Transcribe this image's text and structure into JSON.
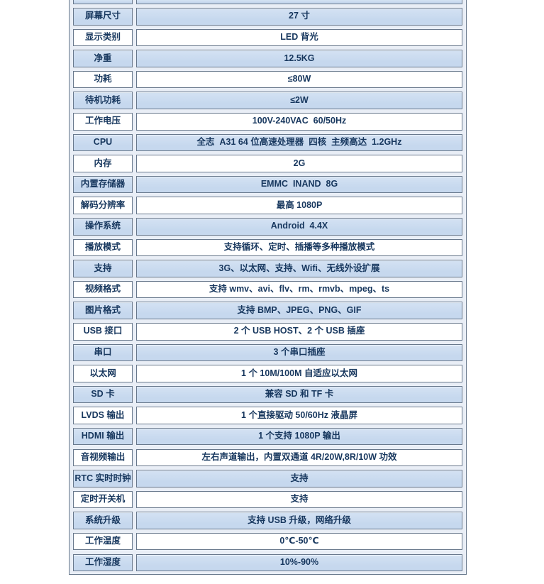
{
  "page": {
    "background": "#ffffff"
  },
  "table": {
    "colors": {
      "row_blue": "#c6d8ee",
      "row_blue_top": "#d4e2f3",
      "row_white": "#ffffff",
      "border": "#68788c",
      "spacing_bg": "#e9eef6",
      "text": "#17375e"
    },
    "rows": [
      {
        "label": "屏幕尺寸",
        "value": "27 寸"
      },
      {
        "label": "显示类别",
        "value": "LED 背光"
      },
      {
        "label": "净重",
        "value": "12.5KG"
      },
      {
        "label": "功耗",
        "value": "≤80W"
      },
      {
        "label": "待机功耗",
        "value": "≤2W"
      },
      {
        "label": "工作电压",
        "value": "100V-240VAC  60/50Hz"
      },
      {
        "label": "CPU",
        "value": "全志  A31 64 位高速处理器  四核  主频高达  1.2GHz"
      },
      {
        "label": "内存",
        "value": "2G"
      },
      {
        "label": "内置存储器",
        "value": "EMMC  INAND  8G"
      },
      {
        "label": "解码分辨率",
        "value": "最高 1080P"
      },
      {
        "label": "操作系统",
        "value": "Android  4.4X"
      },
      {
        "label": "播放模式",
        "value": "支持循环、定时、插播等多种播放模式"
      },
      {
        "label": "支持",
        "value": "3G、以太网、支持、Wifi、无线外设扩展"
      },
      {
        "label": "视频格式",
        "value": "支持 wmv、avi、flv、rm、rmvb、mpeg、ts"
      },
      {
        "label": "图片格式",
        "value": "支持 BMP、JPEG、PNG、GIF"
      },
      {
        "label": "USB 接口",
        "value": "2 个 USB HOST、2 个 USB 插座"
      },
      {
        "label": "串口",
        "value": "3 个串口插座"
      },
      {
        "label": "以太网",
        "value": "1 个 10M/100M 自适应以太网"
      },
      {
        "label": "SD 卡",
        "value": "兼容 SD 和 TF 卡"
      },
      {
        "label": "LVDS 输出",
        "value": "1 个直接驱动 50/60Hz 液晶屏"
      },
      {
        "label": "HDMI 输出",
        "value": "1 个支持 1080P 输出"
      },
      {
        "label": "音视频输出",
        "value": "左右声道输出，内置双通道 4R/20W,8R/10W 功效"
      },
      {
        "label": "RTC 实时时钟",
        "value": "支持"
      },
      {
        "label": "定时开关机",
        "value": "支持"
      },
      {
        "label": "系统升级",
        "value": "支持 USB 升级，网络升级"
      },
      {
        "label": "工作温度",
        "value": "0℃-50℃"
      },
      {
        "label": "工作湿度",
        "value": "10%-90%"
      }
    ]
  }
}
